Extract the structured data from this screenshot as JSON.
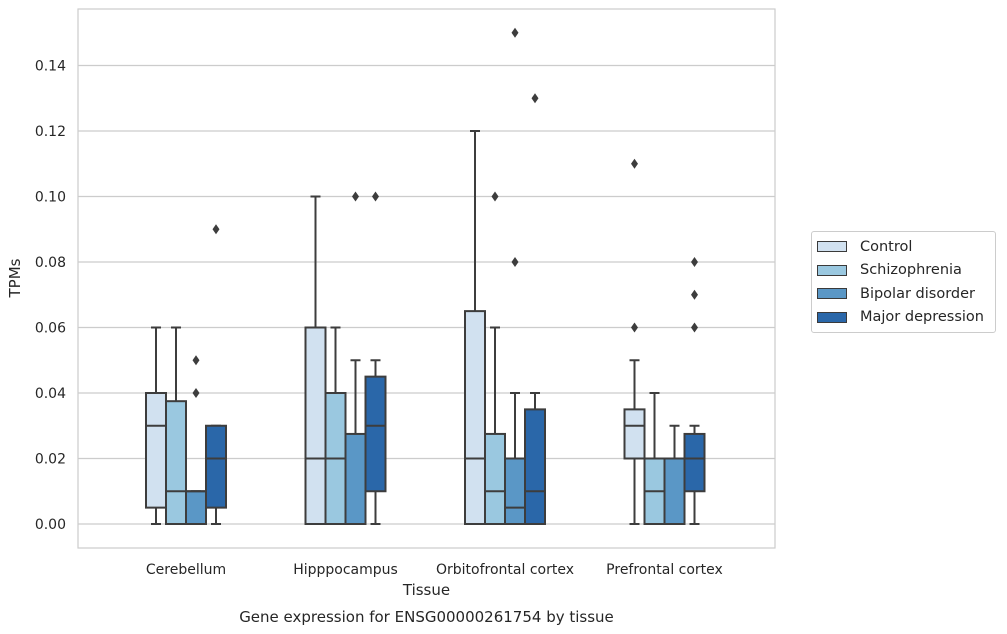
{
  "chart_data": {
    "type": "boxplot",
    "title": "Gene expression for ENSG00000261754 by tissue",
    "xlabel": "Tissue",
    "ylabel": "TPMs",
    "ylim": [
      -0.007,
      0.157
    ],
    "yticks": [
      "0.00",
      "0.02",
      "0.04",
      "0.06",
      "0.08",
      "0.10",
      "0.12",
      "0.14"
    ],
    "grid": "horizontal",
    "legend_position": "right",
    "categories": [
      "Cerebellum",
      "Hipppocampus",
      "Orbitofrontal cortex",
      "Prefrontal cortex"
    ],
    "series": [
      {
        "name": "Control",
        "color": "#d1e1f0",
        "boxes": [
          {
            "whislo": 0,
            "q1": 0.005,
            "med": 0.03,
            "q3": 0.04,
            "whishi": 0.06,
            "fliers": []
          },
          {
            "whislo": 0,
            "q1": 0,
            "med": 0.02,
            "q3": 0.06,
            "whishi": 0.1,
            "fliers": []
          },
          {
            "whislo": 0,
            "q1": 0,
            "med": 0.02,
            "q3": 0.065,
            "whishi": 0.12,
            "fliers": []
          },
          {
            "whislo": 0,
            "q1": 0.02,
            "med": 0.03,
            "q3": 0.035,
            "whishi": 0.05,
            "fliers": [
              0.06,
              0.11
            ]
          }
        ]
      },
      {
        "name": "Schizophrenia",
        "color": "#9ac8e0",
        "boxes": [
          {
            "whislo": 0,
            "q1": 0,
            "med": 0.01,
            "q3": 0.0375,
            "whishi": 0.06,
            "fliers": []
          },
          {
            "whislo": 0,
            "q1": 0,
            "med": 0.02,
            "q3": 0.04,
            "whishi": 0.06,
            "fliers": []
          },
          {
            "whislo": 0,
            "q1": 0,
            "med": 0.01,
            "q3": 0.0275,
            "whishi": 0.06,
            "fliers": [
              0.1
            ]
          },
          {
            "whislo": 0,
            "q1": 0,
            "med": 0.01,
            "q3": 0.02,
            "whishi": 0.04,
            "fliers": []
          }
        ]
      },
      {
        "name": "Bipolar disorder",
        "color": "#5a97c6",
        "boxes": [
          {
            "whislo": 0,
            "q1": 0,
            "med": 0.01,
            "q3": 0.01,
            "whishi": 0.01,
            "fliers": [
              0.04,
              0.05
            ]
          },
          {
            "whislo": 0,
            "q1": 0,
            "med": 0,
            "q3": 0.0275,
            "whishi": 0.05,
            "fliers": [
              0.1
            ]
          },
          {
            "whislo": 0,
            "q1": 0,
            "med": 0.005,
            "q3": 0.02,
            "whishi": 0.04,
            "fliers": [
              0.08,
              0.15
            ]
          },
          {
            "whislo": 0,
            "q1": 0,
            "med": 0,
            "q3": 0.02,
            "whishi": 0.03,
            "fliers": []
          }
        ]
      },
      {
        "name": "Major depression",
        "color": "#2a67a9",
        "boxes": [
          {
            "whislo": 0,
            "q1": 0.005,
            "med": 0.02,
            "q3": 0.03,
            "whishi": 0.03,
            "fliers": [
              0.09
            ]
          },
          {
            "whislo": 0,
            "q1": 0.01,
            "med": 0.03,
            "q3": 0.045,
            "whishi": 0.05,
            "fliers": [
              0.1
            ]
          },
          {
            "whislo": 0,
            "q1": 0,
            "med": 0.01,
            "q3": 0.035,
            "whishi": 0.04,
            "fliers": [
              0.13
            ]
          },
          {
            "whislo": 0,
            "q1": 0.01,
            "med": 0.02,
            "q3": 0.0275,
            "whishi": 0.03,
            "fliers": [
              0.06,
              0.07,
              0.08
            ]
          }
        ]
      }
    ]
  }
}
